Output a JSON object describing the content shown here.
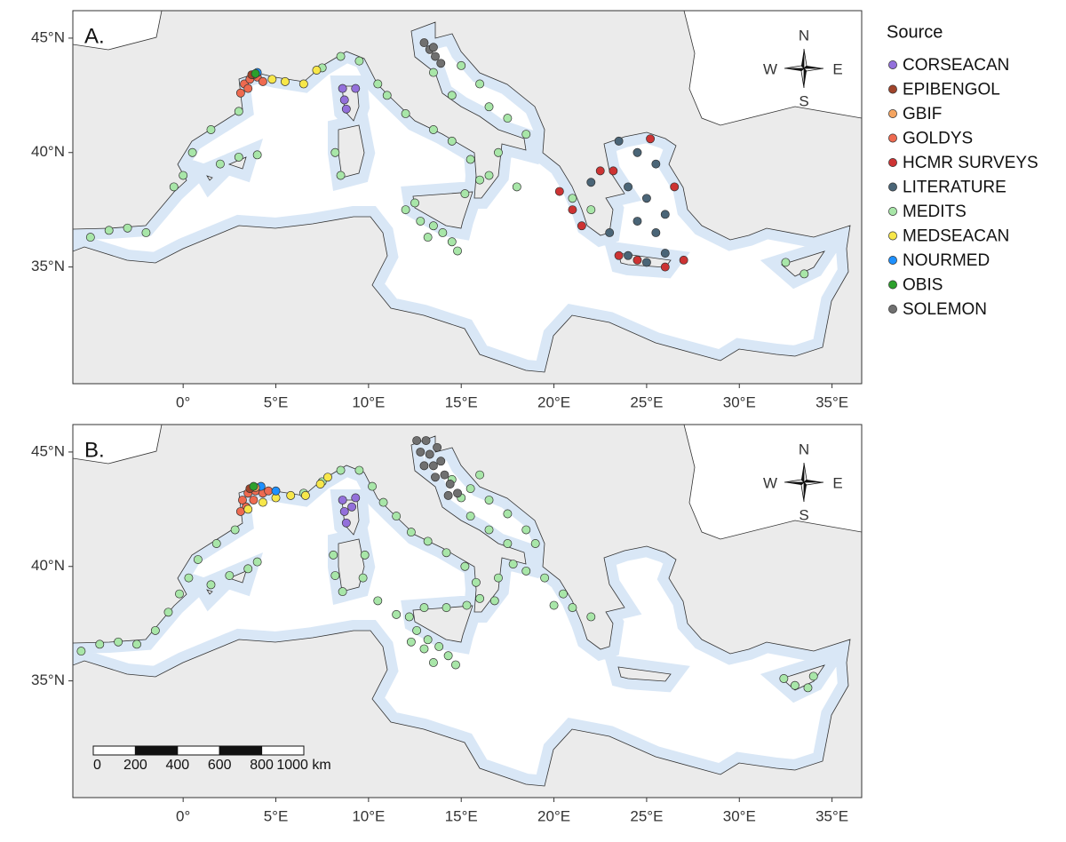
{
  "axes": {
    "xlim": [
      -5.95,
      36.6
    ],
    "ylim": [
      29.9,
      46.2
    ],
    "xticks": [
      {
        "value": 0,
        "label": "0°"
      },
      {
        "value": 5,
        "label": "5°E"
      },
      {
        "value": 10,
        "label": "10°E"
      },
      {
        "value": 15,
        "label": "15°E"
      },
      {
        "value": 20,
        "label": "20°E"
      },
      {
        "value": 25,
        "label": "25°E"
      },
      {
        "value": 30,
        "label": "30°E"
      },
      {
        "value": 35,
        "label": "35°E"
      }
    ],
    "yticks": [
      {
        "value": 35,
        "label": "35°N"
      },
      {
        "value": 40,
        "label": "40°N"
      },
      {
        "value": 45,
        "label": "45°N"
      }
    ]
  },
  "legend": {
    "title": "Source",
    "items": [
      {
        "name": "CORSEACAN",
        "color": "#9370db"
      },
      {
        "name": "EPIBENGOL",
        "color": "#a0442a"
      },
      {
        "name": "GBIF",
        "color": "#f4a460"
      },
      {
        "name": "GOLDYS",
        "color": "#ee6a50"
      },
      {
        "name": "HCMR SURVEYS",
        "color": "#cd3333"
      },
      {
        "name": "LITERATURE",
        "color": "#4a6577"
      },
      {
        "name": "MEDITS",
        "color": "#a8e6a8"
      },
      {
        "name": "MEDSEACAN",
        "color": "#f7e74a"
      },
      {
        "name": "NOURMED",
        "color": "#1e90ff"
      },
      {
        "name": "OBIS",
        "color": "#2ca02c"
      },
      {
        "name": "SOLEMON",
        "color": "#707070"
      }
    ]
  },
  "compass": {
    "n": "N",
    "e": "E",
    "s": "S",
    "w": "W"
  },
  "scale_bar": {
    "labels": [
      0,
      200,
      400,
      600,
      800,
      "1000 km"
    ]
  },
  "panels": [
    {
      "label": "A.",
      "points": {
        "MEDITS": [
          [
            -5,
            36.3
          ],
          [
            -4,
            36.6
          ],
          [
            -3,
            36.7
          ],
          [
            -2,
            36.5
          ],
          [
            -0.5,
            38.5
          ],
          [
            0,
            39
          ],
          [
            0.5,
            40
          ],
          [
            1.5,
            41
          ],
          [
            3,
            41.8
          ],
          [
            2,
            39.5
          ],
          [
            3,
            39.8
          ],
          [
            4,
            39.9
          ],
          [
            7.5,
            43.7
          ],
          [
            8.5,
            44.2
          ],
          [
            9.5,
            44
          ],
          [
            10.5,
            43
          ],
          [
            11,
            42.5
          ],
          [
            12,
            41.7
          ],
          [
            13.5,
            41
          ],
          [
            14.5,
            40.5
          ],
          [
            15.5,
            39.7
          ],
          [
            16,
            38.8
          ],
          [
            15.2,
            38.2
          ],
          [
            12,
            37.5
          ],
          [
            12.8,
            37
          ],
          [
            13.5,
            36.8
          ],
          [
            14,
            36.5
          ],
          [
            14.5,
            36.1
          ],
          [
            14.8,
            35.7
          ],
          [
            13.2,
            36.3
          ],
          [
            12.5,
            37.8
          ],
          [
            15,
            43.8
          ],
          [
            16,
            43
          ],
          [
            14.5,
            42.5
          ],
          [
            16.5,
            42
          ],
          [
            17.5,
            41.5
          ],
          [
            18.5,
            40.8
          ],
          [
            13.5,
            43.5
          ],
          [
            17,
            40
          ],
          [
            16.5,
            39
          ],
          [
            18,
            38.5
          ],
          [
            8.2,
            40
          ],
          [
            8.5,
            39
          ],
          [
            32.5,
            35.2
          ],
          [
            33.5,
            34.7
          ],
          [
            21,
            38
          ],
          [
            22,
            37.5
          ]
        ],
        "SOLEMON": [
          [
            13,
            44.8
          ],
          [
            13.3,
            44.5
          ],
          [
            13.6,
            44.2
          ],
          [
            13.9,
            43.9
          ],
          [
            13.5,
            44.6
          ]
        ],
        "LITERATURE": [
          [
            23.5,
            40.5
          ],
          [
            24.5,
            40
          ],
          [
            25.5,
            39.5
          ],
          [
            24,
            38.5
          ],
          [
            25,
            38
          ],
          [
            26,
            37.3
          ],
          [
            24.5,
            37
          ],
          [
            25.5,
            36.5
          ],
          [
            23,
            36.5
          ],
          [
            24,
            35.5
          ],
          [
            25,
            35.2
          ],
          [
            26,
            35.6
          ],
          [
            22,
            38.7
          ]
        ],
        "HCMR SURVEYS": [
          [
            20.3,
            38.3
          ],
          [
            21,
            37.5
          ],
          [
            21.5,
            36.8
          ],
          [
            22.5,
            39.2
          ],
          [
            23.2,
            39.2
          ],
          [
            25.2,
            40.6
          ],
          [
            26.5,
            38.5
          ],
          [
            24.5,
            35.3
          ],
          [
            26,
            35
          ],
          [
            27,
            35.3
          ],
          [
            23.5,
            35.5
          ]
        ],
        "GOLDYS": [
          [
            3.3,
            43
          ],
          [
            3.6,
            43.2
          ],
          [
            4,
            43.3
          ],
          [
            4.3,
            43.1
          ],
          [
            3.5,
            42.8
          ],
          [
            3.1,
            42.6
          ]
        ],
        "MEDSEACAN": [
          [
            4.8,
            43.2
          ],
          [
            5.5,
            43.1
          ],
          [
            6.5,
            43
          ],
          [
            7.2,
            43.6
          ]
        ],
        "CORSEACAN": [
          [
            8.6,
            42.8
          ],
          [
            8.7,
            42.3
          ],
          [
            8.8,
            41.9
          ],
          [
            9.3,
            42.8
          ]
        ],
        "NOURMED": [
          [
            4,
            43.5
          ]
        ],
        "GBIF": [
          [
            3.8,
            43.4
          ]
        ],
        "EPIBENGOL": [
          [
            3.7,
            43.4
          ]
        ],
        "OBIS": [
          [
            3.9,
            43.45
          ]
        ]
      }
    },
    {
      "label": "B.",
      "points": {
        "MEDITS": [
          [
            -5.5,
            36.3
          ],
          [
            -4.5,
            36.6
          ],
          [
            -3.5,
            36.7
          ],
          [
            -2.5,
            36.6
          ],
          [
            -1.5,
            37.2
          ],
          [
            -0.8,
            38
          ],
          [
            -0.2,
            38.8
          ],
          [
            0.3,
            39.5
          ],
          [
            0.8,
            40.3
          ],
          [
            1.8,
            41
          ],
          [
            2.8,
            41.6
          ],
          [
            1.5,
            39.2
          ],
          [
            2.5,
            39.6
          ],
          [
            3.5,
            39.9
          ],
          [
            4,
            40.2
          ],
          [
            6.5,
            43.2
          ],
          [
            7.5,
            43.7
          ],
          [
            8.5,
            44.2
          ],
          [
            9.5,
            44.2
          ],
          [
            10.2,
            43.5
          ],
          [
            10.8,
            42.8
          ],
          [
            11.5,
            42.2
          ],
          [
            12.3,
            41.5
          ],
          [
            13.2,
            41.1
          ],
          [
            14.2,
            40.6
          ],
          [
            15.2,
            40
          ],
          [
            15.8,
            39.3
          ],
          [
            16,
            38.6
          ],
          [
            15.3,
            38.3
          ],
          [
            14.2,
            38.2
          ],
          [
            13,
            38.2
          ],
          [
            12.2,
            37.8
          ],
          [
            12.6,
            37.2
          ],
          [
            13.2,
            36.8
          ],
          [
            13.8,
            36.5
          ],
          [
            14.3,
            36.1
          ],
          [
            14.7,
            35.7
          ],
          [
            13.5,
            35.8
          ],
          [
            13,
            36.4
          ],
          [
            12.3,
            36.7
          ],
          [
            14.5,
            43.8
          ],
          [
            15.5,
            43.4
          ],
          [
            16.5,
            42.9
          ],
          [
            17.5,
            42.3
          ],
          [
            18.5,
            41.6
          ],
          [
            19,
            41
          ],
          [
            15.5,
            42.2
          ],
          [
            16.5,
            41.6
          ],
          [
            17.5,
            41
          ],
          [
            15,
            43
          ],
          [
            16,
            44
          ],
          [
            17.8,
            40.1
          ],
          [
            17,
            39.5
          ],
          [
            16.8,
            38.5
          ],
          [
            18.5,
            39.8
          ],
          [
            19.5,
            39.5
          ],
          [
            20.5,
            38.8
          ],
          [
            21,
            38.2
          ],
          [
            22,
            37.8
          ],
          [
            8.1,
            40.5
          ],
          [
            8.2,
            39.6
          ],
          [
            8.6,
            38.9
          ],
          [
            9.7,
            39.5
          ],
          [
            9.8,
            40.5
          ],
          [
            32.4,
            35.1
          ],
          [
            33,
            34.8
          ],
          [
            33.7,
            34.7
          ],
          [
            34,
            35.2
          ],
          [
            20,
            38.3
          ],
          [
            10.5,
            38.5
          ],
          [
            11.5,
            37.9
          ]
        ],
        "SOLEMON": [
          [
            12.6,
            45.5
          ],
          [
            13.1,
            45.5
          ],
          [
            12.8,
            45
          ],
          [
            13.3,
            44.9
          ],
          [
            13.7,
            45.2
          ],
          [
            13,
            44.4
          ],
          [
            13.5,
            44.4
          ],
          [
            13.9,
            44.6
          ],
          [
            13.6,
            43.9
          ],
          [
            14.1,
            44
          ],
          [
            14.4,
            43.6
          ],
          [
            14.8,
            43.2
          ],
          [
            14.3,
            43.1
          ]
        ],
        "GOLDYS": [
          [
            3.2,
            42.9
          ],
          [
            3.5,
            43.2
          ],
          [
            3.9,
            43.3
          ],
          [
            4.3,
            43.2
          ],
          [
            3.4,
            42.6
          ],
          [
            3.8,
            42.9
          ],
          [
            4.6,
            43.3
          ],
          [
            3.1,
            42.4
          ]
        ],
        "MEDSEACAN": [
          [
            3.5,
            42.5
          ],
          [
            4.3,
            42.8
          ],
          [
            5,
            43
          ],
          [
            5.8,
            43.1
          ],
          [
            6.6,
            43.1
          ],
          [
            7.4,
            43.6
          ],
          [
            7.8,
            43.9
          ]
        ],
        "CORSEACAN": [
          [
            8.6,
            42.9
          ],
          [
            8.7,
            42.4
          ],
          [
            8.8,
            41.9
          ],
          [
            9.1,
            42.6
          ],
          [
            9.3,
            43
          ]
        ],
        "NOURMED": [
          [
            4.2,
            43.5
          ],
          [
            5,
            43.3
          ]
        ],
        "GBIF": [
          [
            3.9,
            43.45
          ]
        ],
        "EPIBENGOL": [
          [
            3.6,
            43.4
          ]
        ],
        "OBIS": [
          [
            3.8,
            43.5
          ]
        ]
      }
    }
  ]
}
